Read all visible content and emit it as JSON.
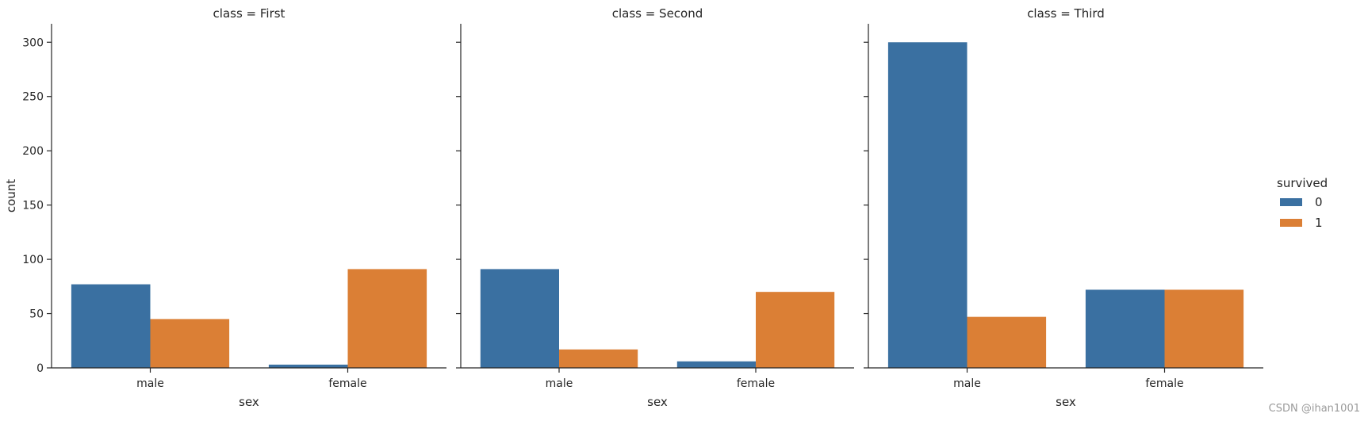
{
  "chart_data": {
    "type": "bar",
    "layout": "facet-columns",
    "xlabel": "sex",
    "ylabel": "count",
    "ylim": [
      0,
      317
    ],
    "yticks": [
      0,
      50,
      100,
      150,
      200,
      250,
      300
    ],
    "categories": [
      "male",
      "female"
    ],
    "hue_title": "survived",
    "hue_levels": [
      "0",
      "1"
    ],
    "colors": [
      "#3a70a1",
      "#db7f35"
    ],
    "legend_position": "right",
    "facets": [
      {
        "title": "class = First",
        "series": [
          {
            "name": "0",
            "values": [
              77,
              3
            ]
          },
          {
            "name": "1",
            "values": [
              45,
              91
            ]
          }
        ]
      },
      {
        "title": "class = Second",
        "series": [
          {
            "name": "0",
            "values": [
              91,
              6
            ]
          },
          {
            "name": "1",
            "values": [
              17,
              70
            ]
          }
        ]
      },
      {
        "title": "class = Third",
        "series": [
          {
            "name": "0",
            "values": [
              300,
              72
            ]
          },
          {
            "name": "1",
            "values": [
              47,
              72
            ]
          }
        ]
      }
    ]
  },
  "watermark": "CSDN @ihan1001"
}
